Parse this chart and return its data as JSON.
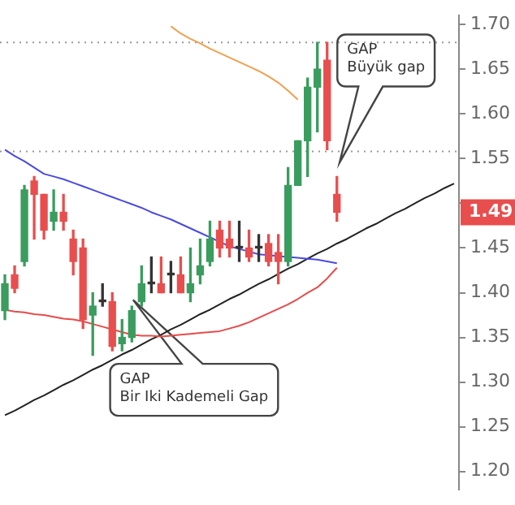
{
  "chart_data": {
    "type": "candlestick",
    "categories": [
      null,
      null,
      null,
      null,
      null,
      null,
      null,
      null,
      null,
      null,
      null,
      null,
      null,
      null,
      null,
      null,
      null,
      null,
      null,
      null,
      null,
      null,
      null,
      null,
      null,
      null,
      null,
      null,
      null,
      null,
      null,
      null,
      null,
      null,
      null,
      null,
      null,
      null,
      null,
      null,
      null,
      null,
      null,
      null,
      null,
      null,
      null
    ],
    "ohlc": [
      [
        1.38,
        1.42,
        1.37,
        1.41
      ],
      [
        1.42,
        1.43,
        1.4,
        1.405
      ],
      [
        1.435,
        1.52,
        1.43,
        1.515
      ],
      [
        1.525,
        1.53,
        1.46,
        1.51
      ],
      [
        1.51,
        1.51,
        1.46,
        1.47
      ],
      [
        1.48,
        1.515,
        1.47,
        1.49
      ],
      [
        1.49,
        1.51,
        1.47,
        1.48
      ],
      [
        1.46,
        1.47,
        1.42,
        1.435
      ],
      [
        1.45,
        1.46,
        1.36,
        1.37
      ],
      [
        1.375,
        1.4,
        1.33,
        1.385
      ],
      [
        1.39,
        1.41,
        1.385,
        1.39
      ],
      [
        1.39,
        1.4,
        1.335,
        1.34
      ],
      [
        1.343,
        1.37,
        1.335,
        1.35
      ],
      [
        1.35,
        1.385,
        1.345,
        1.38
      ],
      [
        1.39,
        1.43,
        1.385,
        1.41
      ],
      [
        1.41,
        1.44,
        1.4,
        1.41
      ],
      [
        1.41,
        1.44,
        1.4,
        1.4
      ],
      [
        1.42,
        1.435,
        1.4,
        1.42
      ],
      [
        1.42,
        1.44,
        1.4,
        1.4
      ],
      [
        1.4,
        1.45,
        1.39,
        1.41
      ],
      [
        1.42,
        1.46,
        1.41,
        1.43
      ],
      [
        1.435,
        1.48,
        1.43,
        1.46
      ],
      [
        1.47,
        1.48,
        1.44,
        1.45
      ],
      [
        1.46,
        1.48,
        1.44,
        1.45
      ],
      [
        1.45,
        1.48,
        1.435,
        1.45
      ],
      [
        1.45,
        1.47,
        1.435,
        1.44
      ],
      [
        1.45,
        1.465,
        1.435,
        1.45
      ],
      [
        1.455,
        1.465,
        1.43,
        1.435
      ],
      [
        1.445,
        1.465,
        1.41,
        1.435
      ],
      [
        1.435,
        1.54,
        1.43,
        1.52
      ],
      [
        1.52,
        1.57,
        1.52,
        1.57
      ],
      [
        1.57,
        1.64,
        1.53,
        1.63
      ],
      [
        1.63,
        1.68,
        1.58,
        1.65
      ],
      [
        1.66,
        1.68,
        1.56,
        1.57
      ],
      [
        1.51,
        1.53,
        1.48,
        1.49
      ],
      null,
      null,
      null,
      null,
      null,
      null,
      null,
      null,
      null,
      null,
      null,
      null
    ],
    "colors": [
      "#3a9c5e",
      "#e84e4e",
      "#3a9c5e",
      "#e84e4e",
      "#e84e4e",
      "#3a9c5e",
      "#e84e4e",
      "#e84e4e",
      "#e84e4e",
      "#3a9c5e",
      "#333333",
      "#e84e4e",
      "#3a9c5e",
      "#3a9c5e",
      "#3a9c5e",
      "#333333",
      "#e84e4e",
      "#333333",
      "#e84e4e",
      "#3a9c5e",
      "#3a9c5e",
      "#3a9c5e",
      "#e84e4e",
      "#e84e4e",
      "#333333",
      "#e84e4e",
      "#333333",
      "#e84e4e",
      "#e84e4e",
      "#3a9c5e",
      "#3a9c5e",
      "#3a9c5e",
      "#3a9c5e",
      "#e84e4e",
      "#e84e4e",
      null,
      null,
      null,
      null,
      null,
      null,
      null,
      null,
      null,
      null,
      null,
      null
    ],
    "series": [
      {
        "type": "line",
        "color": "#f0a050",
        "values": [
          null,
          null,
          null,
          null,
          null,
          null,
          null,
          null,
          null,
          null,
          null,
          null,
          null,
          null,
          null,
          null,
          null,
          1.698,
          1.69,
          1.684,
          1.679,
          1.673,
          1.668,
          1.663,
          1.658,
          1.653,
          1.648,
          1.642,
          1.635,
          1.626,
          1.616,
          null,
          null,
          null,
          null,
          null,
          null,
          null,
          null,
          null,
          null,
          null,
          null,
          null,
          null,
          null,
          null
        ]
      },
      {
        "type": "line",
        "color": "#4a4ae0",
        "values": [
          1.56,
          1.553,
          1.547,
          1.54,
          1.533,
          1.53,
          1.527,
          1.523,
          1.519,
          1.515,
          1.511,
          1.507,
          1.503,
          1.499,
          1.495,
          1.49,
          1.486,
          1.482,
          1.477,
          1.472,
          1.467,
          1.462,
          1.457,
          1.452,
          1.449,
          1.446,
          1.443,
          1.442,
          1.441,
          1.44,
          1.439,
          1.438,
          1.437,
          1.435,
          1.433,
          null,
          null,
          null,
          null,
          null,
          null,
          null,
          null,
          null,
          null,
          null,
          null
        ]
      },
      {
        "type": "line",
        "color": "#e84a4a",
        "values": [
          1.381,
          1.379,
          1.378,
          1.376,
          1.375,
          1.373,
          1.371,
          1.37,
          1.368,
          1.365,
          1.362,
          1.359,
          1.356,
          1.353,
          1.352,
          1.352,
          1.351,
          1.352,
          1.353,
          1.354,
          1.355,
          1.356,
          1.357,
          1.36,
          1.363,
          1.367,
          1.372,
          1.377,
          1.382,
          1.387,
          1.393,
          1.4,
          1.406,
          1.416,
          1.428,
          null,
          null,
          null,
          null,
          null,
          null,
          null,
          null,
          null,
          null,
          null,
          null
        ]
      },
      {
        "type": "line",
        "color": "#222222",
        "values": [
          1.263,
          1.268,
          1.274,
          1.28,
          1.285,
          1.291,
          1.297,
          1.302,
          1.308,
          1.314,
          1.319,
          1.325,
          1.331,
          1.336,
          1.342,
          1.348,
          1.353,
          1.359,
          1.364,
          1.37,
          1.376,
          1.381,
          1.387,
          1.393,
          1.398,
          1.404,
          1.41,
          1.415,
          1.421,
          1.427,
          1.432,
          1.438,
          1.444,
          1.449,
          1.455,
          1.46,
          1.466,
          1.472,
          1.477,
          1.483,
          1.489,
          1.494,
          1.5,
          1.506,
          1.511,
          1.517,
          1.522
        ]
      }
    ],
    "ylim": [
      1.18,
      1.71
    ],
    "yticks": [
      {
        "value": 1.2,
        "label": "1.20"
      },
      {
        "value": 1.25,
        "label": "1.25"
      },
      {
        "value": 1.3,
        "label": "1.30"
      },
      {
        "value": 1.35,
        "label": "1.35"
      },
      {
        "value": 1.4,
        "label": "1.40"
      },
      {
        "value": 1.45,
        "label": "1.45"
      },
      {
        "value": 1.5,
        "label": null
      },
      {
        "value": 1.55,
        "label": "1.55"
      },
      {
        "value": 1.6,
        "label": "1.60"
      },
      {
        "value": 1.65,
        "label": "1.65"
      },
      {
        "value": 1.7,
        "label": "1.70"
      }
    ],
    "tick_labels": "y",
    "ref_lines": [
      {
        "axis": "y",
        "value": 1.68,
        "color": "#999999",
        "line_style": "dotted"
      },
      {
        "axis": "y",
        "value": 1.558,
        "color": "#999999",
        "line_style": "dotted"
      }
    ],
    "annotations": [
      "GAP\nBüyük gap",
      "GAP\nBir Iki Kademeli Gap",
      {
        "text": "1.49",
        "y": 1.49
      }
    ]
  }
}
